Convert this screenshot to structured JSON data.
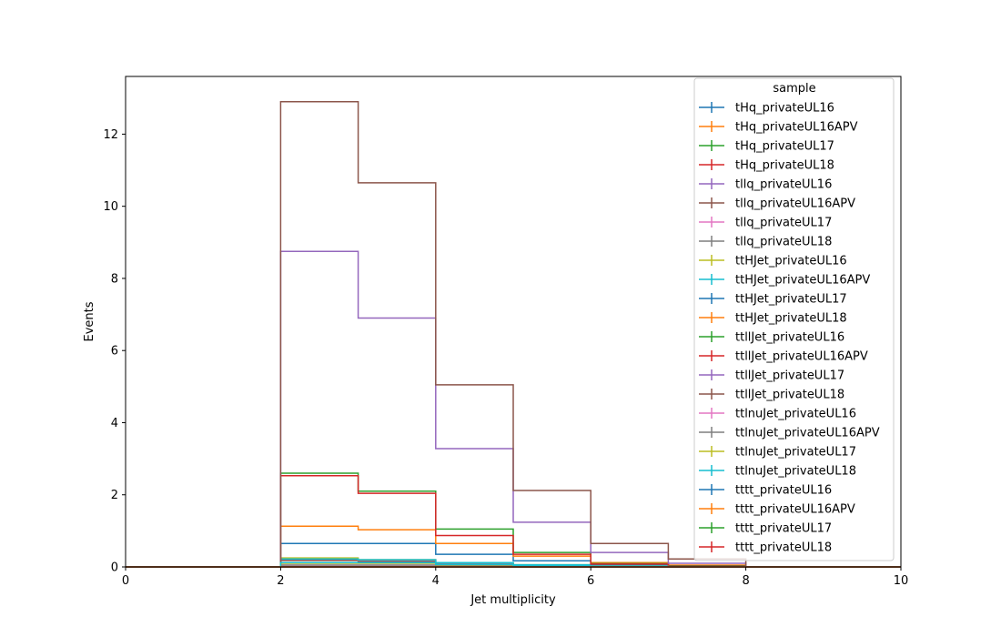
{
  "chart_data": {
    "type": "line",
    "style": "step-histogram",
    "xlabel": "Jet multiplicity",
    "ylabel": "Events",
    "xlim": [
      0,
      10
    ],
    "ylim": [
      0,
      13.6
    ],
    "xticks": [
      0,
      2,
      4,
      6,
      8,
      10
    ],
    "yticks": [
      0,
      2,
      4,
      6,
      8,
      10,
      12
    ],
    "grid": false,
    "bin_edges": [
      0,
      1,
      2,
      3,
      4,
      5,
      6,
      7,
      8,
      9,
      10
    ],
    "legend": {
      "title": "sample",
      "placement": "top-right"
    },
    "series": [
      {
        "name": "tHq_privateUL16",
        "color": "#1f77b4",
        "values": [
          0,
          0,
          0.003,
          0.003,
          0.002,
          0.001,
          0,
          0,
          0,
          0
        ]
      },
      {
        "name": "tHq_privateUL16APV",
        "color": "#ff7f0e",
        "values": [
          0,
          0,
          0.003,
          0.003,
          0.002,
          0.001,
          0,
          0,
          0,
          0
        ]
      },
      {
        "name": "tHq_privateUL17",
        "color": "#2ca02c",
        "values": [
          0,
          0,
          0.006,
          0.006,
          0.004,
          0.002,
          0,
          0,
          0,
          0
        ]
      },
      {
        "name": "tHq_privateUL18",
        "color": "#d62728",
        "values": [
          0,
          0,
          0.008,
          0.008,
          0.005,
          0.002,
          0,
          0,
          0,
          0
        ]
      },
      {
        "name": "tllq_privateUL16",
        "color": "#9467bd",
        "values": [
          0,
          0,
          0.2,
          0.17,
          0.09,
          0.03,
          0.01,
          0,
          0,
          0
        ]
      },
      {
        "name": "tllq_privateUL16APV",
        "color": "#8c564b",
        "values": [
          0,
          0,
          0.18,
          0.15,
          0.08,
          0.03,
          0.01,
          0,
          0,
          0
        ]
      },
      {
        "name": "tllq_privateUL17",
        "color": "#e377c2",
        "values": [
          0,
          0,
          0.22,
          0.19,
          0.1,
          0.035,
          0.01,
          0,
          0,
          0
        ]
      },
      {
        "name": "tllq_privateUL18",
        "color": "#7f7f7f",
        "values": [
          0,
          0,
          0.22,
          0.2,
          0.11,
          0.04,
          0.01,
          0,
          0,
          0
        ]
      },
      {
        "name": "ttHJet_privateUL16",
        "color": "#bcbd22",
        "values": [
          0,
          0,
          0.25,
          0.2,
          0.12,
          0.06,
          0.03,
          0.01,
          0,
          0
        ]
      },
      {
        "name": "ttHJet_privateUL16APV",
        "color": "#17becf",
        "values": [
          0,
          0,
          0.22,
          0.2,
          0.12,
          0.06,
          0.03,
          0.01,
          0,
          0
        ]
      },
      {
        "name": "ttHJet_privateUL17",
        "color": "#1f77b4",
        "values": [
          0,
          0,
          0.65,
          0.65,
          0.35,
          0.17,
          0.07,
          0.03,
          0,
          0
        ]
      },
      {
        "name": "ttHJet_privateUL18",
        "color": "#ff7f0e",
        "values": [
          0,
          0,
          1.13,
          1.03,
          0.65,
          0.3,
          0.12,
          0.05,
          0,
          0
        ]
      },
      {
        "name": "ttllJet_privateUL16",
        "color": "#2ca02c",
        "values": [
          0,
          0,
          2.6,
          2.1,
          1.05,
          0.4,
          0.09,
          0.03,
          0,
          0
        ]
      },
      {
        "name": "ttllJet_privateUL16APV",
        "color": "#d62728",
        "values": [
          0,
          0,
          2.53,
          2.04,
          0.87,
          0.35,
          0.08,
          0.02,
          0,
          0
        ]
      },
      {
        "name": "ttllJet_privateUL17",
        "color": "#9467bd",
        "values": [
          0,
          0,
          8.75,
          6.9,
          3.28,
          1.24,
          0.4,
          0.1,
          0,
          0
        ]
      },
      {
        "name": "ttllJet_privateUL18",
        "color": "#8c564b",
        "values": [
          0,
          0,
          12.9,
          10.65,
          5.05,
          2.12,
          0.65,
          0.22,
          0,
          0
        ]
      },
      {
        "name": "ttlnuJet_privateUL16",
        "color": "#e377c2",
        "values": [
          0,
          0,
          0.05,
          0.05,
          0.03,
          0.02,
          0.01,
          0,
          0,
          0
        ]
      },
      {
        "name": "ttlnuJet_privateUL16APV",
        "color": "#7f7f7f",
        "values": [
          0,
          0,
          0.05,
          0.05,
          0.03,
          0.02,
          0.01,
          0,
          0,
          0
        ]
      },
      {
        "name": "ttlnuJet_privateUL17",
        "color": "#bcbd22",
        "values": [
          0,
          0,
          0.1,
          0.1,
          0.06,
          0.03,
          0.01,
          0,
          0,
          0
        ]
      },
      {
        "name": "ttlnuJet_privateUL18",
        "color": "#17becf",
        "values": [
          0,
          0,
          0.12,
          0.12,
          0.07,
          0.03,
          0.01,
          0,
          0,
          0
        ]
      },
      {
        "name": "tttt_privateUL16",
        "color": "#1f77b4",
        "values": [
          0,
          0,
          0,
          0,
          0,
          0,
          0,
          0,
          0,
          0
        ]
      },
      {
        "name": "tttt_privateUL16APV",
        "color": "#ff7f0e",
        "values": [
          0,
          0,
          0,
          0,
          0,
          0,
          0,
          0,
          0,
          0
        ]
      },
      {
        "name": "tttt_privateUL17",
        "color": "#2ca02c",
        "values": [
          0,
          0,
          0,
          0,
          0,
          0,
          0,
          0,
          0,
          0
        ]
      },
      {
        "name": "tttt_privateUL18",
        "color": "#d62728",
        "values": [
          0,
          0,
          0,
          0,
          0,
          0,
          0,
          0,
          0,
          0
        ]
      }
    ]
  }
}
